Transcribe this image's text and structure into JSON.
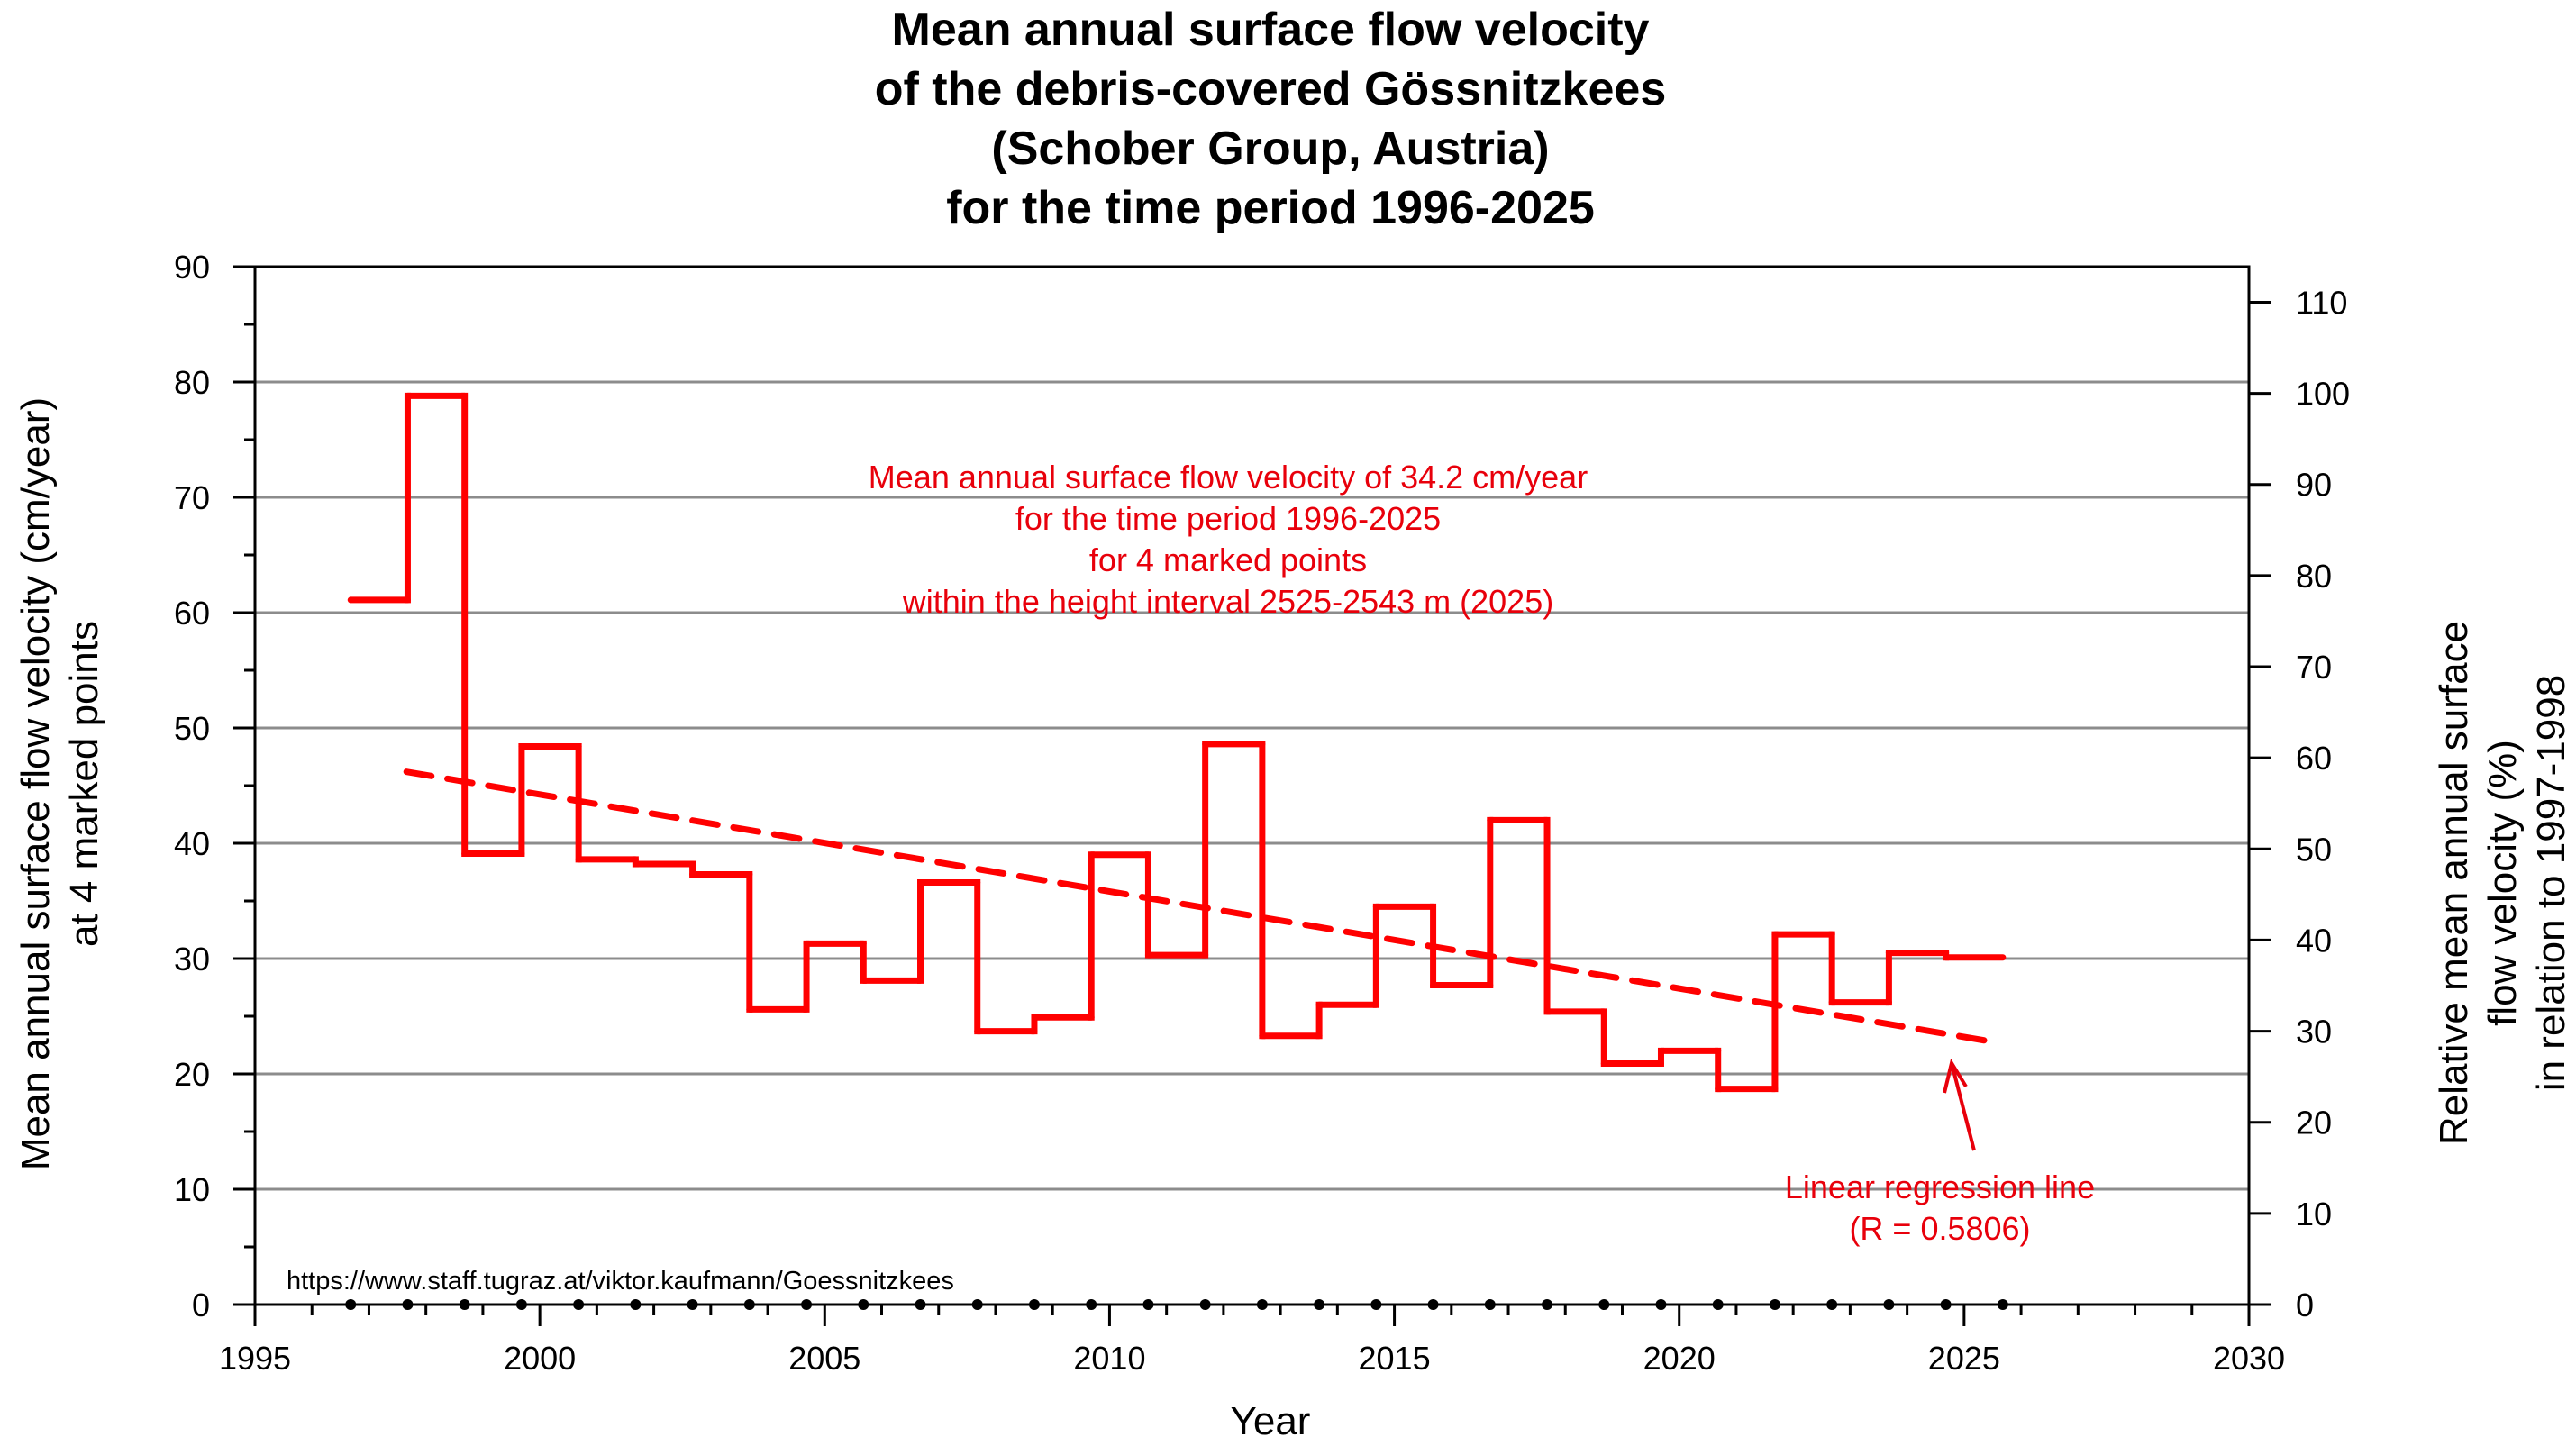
{
  "chart_data": {
    "type": "line",
    "style": "step",
    "title": [
      "Mean annual surface flow velocity",
      "of the debris-covered Gössnitzkees",
      "(Schober Group, Austria)",
      "for the time period 1996-2025"
    ],
    "xlabel": "Year",
    "ylabel": [
      "Mean annual surface flow velocity (cm/year)",
      "at 4 marked points"
    ],
    "y2label": [
      "Relative mean annual surface",
      "flow velocity (%)",
      "in relation to 1997-1998"
    ],
    "xlim": [
      1995,
      2030
    ],
    "ylim": [
      0,
      90
    ],
    "y2lim": [
      0,
      113.9
    ],
    "x_ticks": [
      1995,
      2000,
      2005,
      2010,
      2015,
      2020,
      2025,
      2030
    ],
    "y_ticks": [
      0,
      10,
      20,
      30,
      40,
      50,
      60,
      70,
      80,
      90
    ],
    "y2_ticks": [
      0,
      10,
      20,
      30,
      40,
      50,
      60,
      70,
      80,
      90,
      100,
      110
    ],
    "grid": "horizontal",
    "series_color": "#ff0000",
    "measurement_epochs": [
      1996.68,
      1997.68,
      1998.68,
      1999.68,
      2000.68,
      2001.68,
      2002.68,
      2003.68,
      2004.68,
      2005.68,
      2006.68,
      2007.68,
      2008.68,
      2009.68,
      2010.68,
      2011.68,
      2012.68,
      2013.68,
      2014.68,
      2015.68,
      2016.68,
      2017.68,
      2018.68,
      2019.68,
      2020.68,
      2021.68,
      2022.68,
      2023.68,
      2024.68,
      2025.68
    ],
    "series": [
      {
        "name": "Mean annual surface flow velocity (cm/year)",
        "values": [
          61.1,
          78.8,
          39.1,
          48.4,
          38.6,
          38.2,
          37.3,
          25.6,
          31.3,
          28.1,
          36.6,
          23.7,
          24.9,
          39.0,
          30.3,
          48.6,
          23.3,
          26.0,
          34.5,
          27.7,
          42.0,
          25.4,
          20.9,
          22.0,
          18.7,
          32.1,
          26.2,
          30.5,
          30.1
        ]
      }
    ],
    "regression": {
      "name": "Linear regression line",
      "x": [
        1997.66,
        2025.6
      ],
      "y": [
        46.2,
        22.7
      ],
      "label": [
        "Linear regression line",
        "(R = 0.5806)"
      ]
    },
    "annotation": [
      "Mean annual surface flow velocity of 34.2 cm/year",
      "for the time period 1996-2025",
      "for 4 marked points",
      "within the height interval 2525-2543 m (2025)"
    ],
    "source_url": "https://www.staff.tugraz.at/viktor.kaufmann/Goessnitzkees"
  }
}
